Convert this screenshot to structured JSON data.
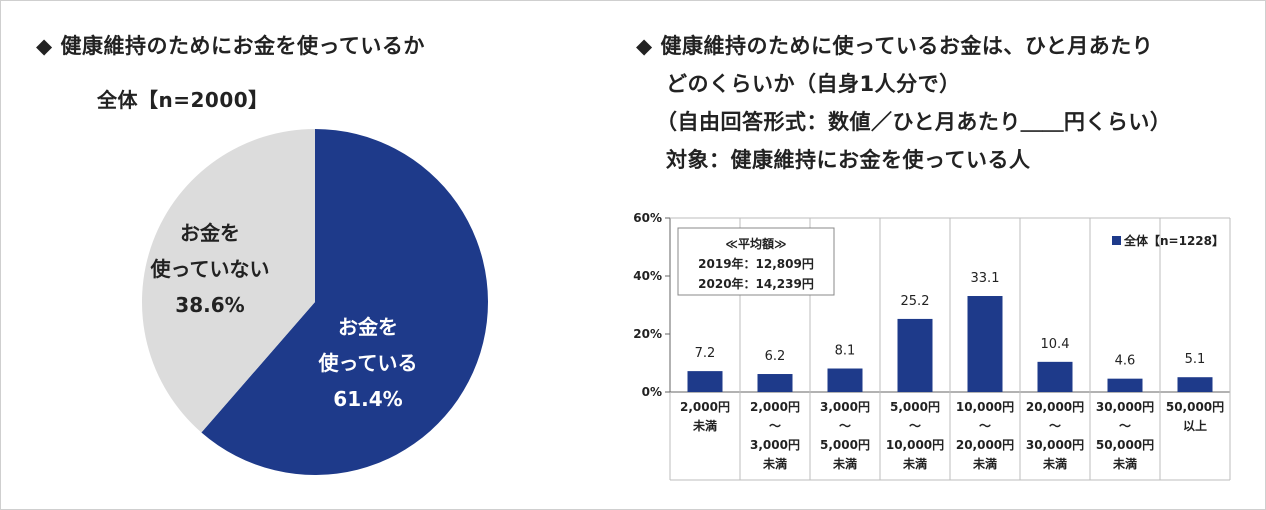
{
  "left": {
    "title": "◆ 健康維持のためにお金を使っているか",
    "subtitle": "全体【n=2000】"
  },
  "right": {
    "title_lines": [
      "◆ 健康維持のために使っているお金は、ひと月あたり",
      "どのくらいか（自身1人分で）",
      "（自由回答形式：数値／ひと月あたり＿＿円くらい）",
      "対象：健康維持にお金を使っている人"
    ]
  },
  "colors": {
    "navy": "#1e3a8a",
    "grey": "#dcdcdc",
    "grid": "#bdbdbd",
    "text": "#222222"
  },
  "chart_data": [
    {
      "type": "pie",
      "slices": [
        {
          "label_lines": [
            "お金を",
            "使っている",
            "61.4%"
          ],
          "value": 61.4,
          "color": "#1e3a8a"
        },
        {
          "label_lines": [
            "お金を",
            "使っていない",
            "38.6%"
          ],
          "value": 38.6,
          "color": "#dcdcdc"
        }
      ]
    },
    {
      "type": "bar",
      "categories": [
        [
          "2,000円",
          "未満"
        ],
        [
          "2,000円",
          "～",
          "3,000円",
          "未満"
        ],
        [
          "3,000円",
          "～",
          "5,000円",
          "未満"
        ],
        [
          "5,000円",
          "～",
          "10,000円",
          "未満"
        ],
        [
          "10,000円",
          "～",
          "20,000円",
          "未満"
        ],
        [
          "20,000円",
          "～",
          "30,000円",
          "未満"
        ],
        [
          "30,000円",
          "～",
          "50,000円",
          "未満"
        ],
        [
          "50,000円",
          "以上"
        ]
      ],
      "series": [
        {
          "name": "全体【n=1228】",
          "values": [
            7.2,
            6.2,
            8.1,
            25.2,
            33.1,
            10.4,
            4.6,
            5.1
          ],
          "color": "#1e3a8a"
        }
      ],
      "value_labels": [
        "7.2",
        "6.2",
        "8.1",
        "25.2",
        "33.1",
        "10.4",
        "4.6",
        "5.1"
      ],
      "ylim": [
        0,
        60
      ],
      "yticks": [
        "0%",
        "20%",
        "40%",
        "60%"
      ],
      "ytick_values": [
        0,
        20,
        40,
        60
      ],
      "note_lines": [
        "≪平均額≫",
        "2019年：12,809円",
        "2020年：14,239円"
      ],
      "legend_label": "全体【n=1228】",
      "legend_position": "top-right",
      "grid": "vertical category separators"
    }
  ]
}
